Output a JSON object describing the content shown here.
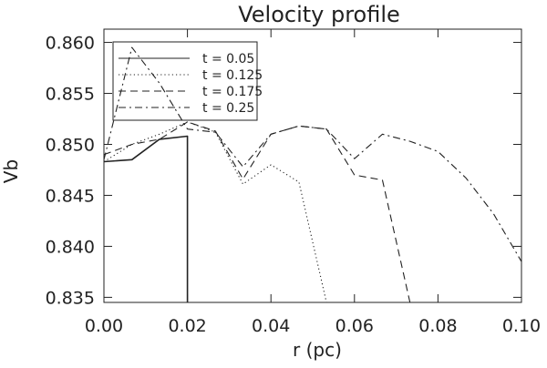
{
  "chart_data": {
    "type": "line",
    "title": "Velocity profile",
    "xlabel": "r (pc)",
    "ylabel": "Vb",
    "xlim": [
      0.0,
      0.1
    ],
    "ylim": [
      0.8345,
      0.8613
    ],
    "xticks": [
      0.0,
      0.02,
      0.04,
      0.06,
      0.08,
      0.1
    ],
    "xtick_labels": [
      "0.00",
      "0.02",
      "0.04",
      "0.06",
      "0.08",
      "0.10"
    ],
    "yticks": [
      0.835,
      0.84,
      0.845,
      0.85,
      0.855,
      0.86
    ],
    "ytick_labels": [
      "0.835",
      "0.840",
      "0.845",
      "0.850",
      "0.855",
      "0.860"
    ],
    "grid": false,
    "legend_position": "top-left",
    "series": [
      {
        "name": "t = 0.05",
        "style": "solid",
        "x": [
          0.0,
          0.0067,
          0.0133,
          0.02,
          0.02,
          0.02
        ],
        "y": [
          0.8483,
          0.8485,
          0.8505,
          0.8508,
          0.838,
          0.8345
        ]
      },
      {
        "name": "t = 0.125",
        "style": "dotted",
        "x": [
          0.0,
          0.0067,
          0.0133,
          0.02,
          0.0267,
          0.0333,
          0.04,
          0.0467,
          0.0533
        ],
        "y": [
          0.8483,
          0.85,
          0.851,
          0.8522,
          0.8512,
          0.8461,
          0.848,
          0.8463,
          0.8345
        ]
      },
      {
        "name": "t = 0.175",
        "style": "dashed",
        "x": [
          0.0,
          0.0067,
          0.0133,
          0.02,
          0.0267,
          0.0333,
          0.04,
          0.0467,
          0.0533,
          0.06,
          0.0667,
          0.0733
        ],
        "y": [
          0.849,
          0.85,
          0.8505,
          0.8522,
          0.8513,
          0.8466,
          0.851,
          0.8518,
          0.8515,
          0.847,
          0.8465,
          0.8345
        ]
      },
      {
        "name": "t = 0.25",
        "style": "dashdot",
        "x": [
          0.0,
          0.0067,
          0.0133,
          0.02,
          0.0267,
          0.0333,
          0.04,
          0.0467,
          0.0533,
          0.06,
          0.0667,
          0.0733,
          0.08,
          0.0867,
          0.0933,
          0.1
        ],
        "y": [
          0.8485,
          0.8595,
          0.856,
          0.8515,
          0.8512,
          0.8478,
          0.851,
          0.8518,
          0.8515,
          0.8486,
          0.851,
          0.8503,
          0.8493,
          0.8467,
          0.8432,
          0.8385
        ]
      }
    ]
  },
  "colors": {
    "background": "#ffffff",
    "ink": "#222222"
  }
}
